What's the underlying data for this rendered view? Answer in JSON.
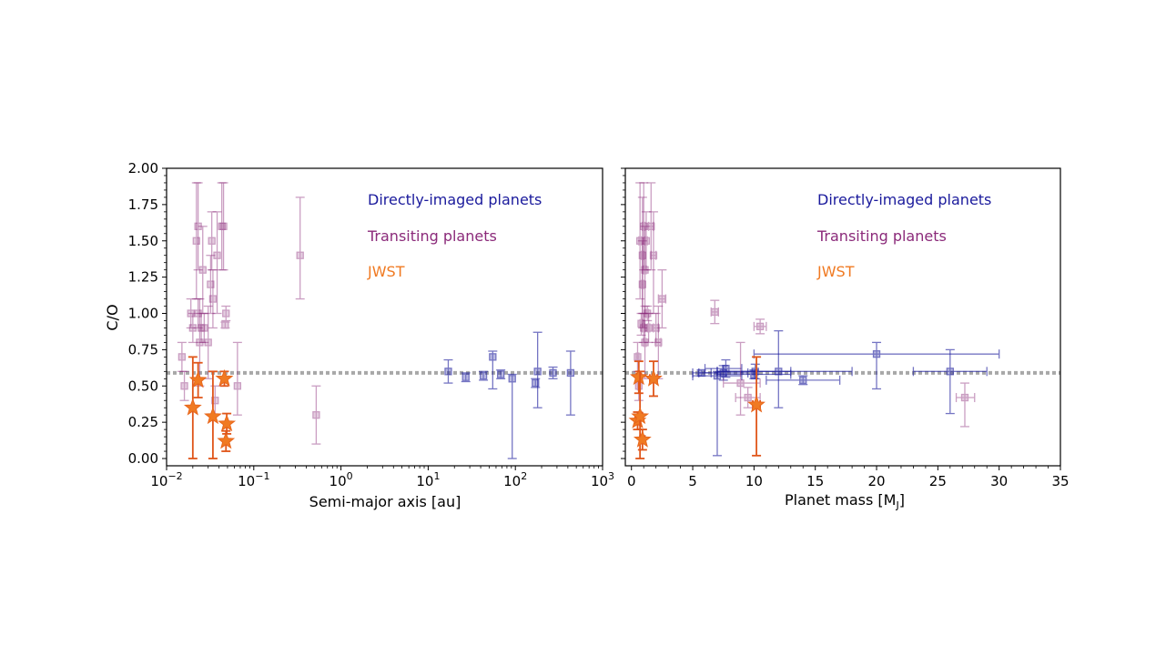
{
  "colors": {
    "direct": "#1a1a9c",
    "transit": "#8b2a7a",
    "jwst": "#f07a22",
    "jwst_err": "#e0561a",
    "ref_line": "#a8a8a8"
  },
  "chart_data": [
    {
      "type": "scatter",
      "id": "left",
      "xscale": "log",
      "xlim": [
        0.01,
        1000
      ],
      "ylim": [
        -0.05,
        2.0
      ],
      "xlabel": "Semi-major axis [au]",
      "ylabel": "C/O",
      "xticks": [
        0.01,
        0.1,
        1,
        10,
        100,
        1000
      ],
      "xtick_labels": [
        {
          "base": "10",
          "exp": "−2"
        },
        {
          "base": "10",
          "exp": "−1"
        },
        {
          "base": "10",
          "exp": "0"
        },
        {
          "base": "10",
          "exp": "1"
        },
        {
          "base": "10",
          "exp": "2"
        },
        {
          "base": "10",
          "exp": "3"
        }
      ],
      "yticks": [
        0.0,
        0.25,
        0.5,
        0.75,
        1.0,
        1.25,
        1.5,
        1.75,
        2.0
      ],
      "ytick_labels": [
        "0.00",
        "0.25",
        "0.50",
        "0.75",
        "1.00",
        "1.25",
        "1.50",
        "1.75",
        "2.00"
      ],
      "reference_line": 0.59,
      "legend": [
        {
          "label": "Directly-imaged planets",
          "series": "direct"
        },
        {
          "label": "Transiting planets",
          "series": "transit"
        },
        {
          "label": "JWST",
          "series": "jwst"
        }
      ],
      "series": [
        {
          "name": "Directly-imaged planets",
          "key": "direct",
          "marker": "square",
          "points": [
            {
              "x": 17,
              "y": 0.6,
              "ylo": 0.52,
              "yhi": 0.68
            },
            {
              "x": 27,
              "y": 0.56,
              "ylo": 0.53,
              "yhi": 0.59
            },
            {
              "x": 43,
              "y": 0.57,
              "ylo": 0.54,
              "yhi": 0.6
            },
            {
              "x": 55,
              "y": 0.7,
              "ylo": 0.48,
              "yhi": 0.74
            },
            {
              "x": 68,
              "y": 0.58,
              "ylo": 0.55,
              "yhi": 0.61
            },
            {
              "x": 92,
              "y": 0.55,
              "ylo": 0.0,
              "yhi": 0.58
            },
            {
              "x": 170,
              "y": 0.52,
              "ylo": 0.49,
              "yhi": 0.55
            },
            {
              "x": 180,
              "y": 0.6,
              "ylo": 0.35,
              "yhi": 0.87
            },
            {
              "x": 270,
              "y": 0.59,
              "ylo": 0.55,
              "yhi": 0.63
            },
            {
              "x": 430,
              "y": 0.59,
              "ylo": 0.3,
              "yhi": 0.74
            }
          ]
        },
        {
          "name": "Transiting planets",
          "key": "transit",
          "marker": "square",
          "points": [
            {
              "x": 0.015,
              "y": 0.7,
              "ylo": 0.6,
              "yhi": 0.8
            },
            {
              "x": 0.016,
              "y": 0.5,
              "ylo": 0.4,
              "yhi": 0.6
            },
            {
              "x": 0.019,
              "y": 1.0,
              "ylo": 0.9,
              "yhi": 1.1
            },
            {
              "x": 0.02,
              "y": 0.9,
              "ylo": 0.8,
              "yhi": 1.0
            },
            {
              "x": 0.022,
              "y": 1.5,
              "ylo": 1.1,
              "yhi": 1.9
            },
            {
              "x": 0.023,
              "y": 1.6,
              "ylo": 1.3,
              "yhi": 1.9
            },
            {
              "x": 0.023,
              "y": 1.0,
              "ylo": 0.9,
              "yhi": 1.1
            },
            {
              "x": 0.024,
              "y": 0.8,
              "ylo": 0.5,
              "yhi": 1.1
            },
            {
              "x": 0.025,
              "y": 0.9,
              "ylo": 0.8,
              "yhi": 1.0
            },
            {
              "x": 0.026,
              "y": 1.3,
              "ylo": 1.0,
              "yhi": 1.6
            },
            {
              "x": 0.027,
              "y": 0.9,
              "ylo": 0.8,
              "yhi": 1.0
            },
            {
              "x": 0.03,
              "y": 0.8,
              "ylo": 0.55,
              "yhi": 1.05
            },
            {
              "x": 0.032,
              "y": 1.2,
              "ylo": 1.0,
              "yhi": 1.4
            },
            {
              "x": 0.033,
              "y": 1.5,
              "ylo": 1.3,
              "yhi": 1.7
            },
            {
              "x": 0.034,
              "y": 1.1,
              "ylo": 0.9,
              "yhi": 1.3
            },
            {
              "x": 0.036,
              "y": 0.4,
              "ylo": 0.3,
              "yhi": 0.5
            },
            {
              "x": 0.038,
              "y": 1.4,
              "ylo": 1.0,
              "yhi": 1.7
            },
            {
              "x": 0.043,
              "y": 1.6,
              "ylo": 1.3,
              "yhi": 1.9
            },
            {
              "x": 0.045,
              "y": 1.6,
              "ylo": 1.3,
              "yhi": 1.9
            },
            {
              "x": 0.047,
              "y": 0.92,
              "ylo": 0.9,
              "yhi": 0.94
            },
            {
              "x": 0.048,
              "y": 1.0,
              "ylo": 0.95,
              "yhi": 1.05
            },
            {
              "x": 0.065,
              "y": 0.5,
              "ylo": 0.3,
              "yhi": 0.8
            },
            {
              "x": 0.34,
              "y": 1.4,
              "ylo": 1.1,
              "yhi": 1.8
            },
            {
              "x": 0.52,
              "y": 0.3,
              "ylo": 0.1,
              "yhi": 0.5
            }
          ]
        },
        {
          "name": "JWST",
          "key": "jwst",
          "marker": "star",
          "points": [
            {
              "x": 0.02,
              "y": 0.35,
              "ylo": 0.0,
              "yhi": 0.7
            },
            {
              "x": 0.023,
              "y": 0.54,
              "ylo": 0.42,
              "yhi": 0.66
            },
            {
              "x": 0.034,
              "y": 0.29,
              "ylo": 0.0,
              "yhi": 0.6
            },
            {
              "x": 0.046,
              "y": 0.55,
              "ylo": 0.5,
              "yhi": 0.6
            },
            {
              "x": 0.048,
              "y": 0.12,
              "ylo": 0.05,
              "yhi": 0.19
            },
            {
              "x": 0.049,
              "y": 0.24,
              "ylo": 0.17,
              "yhi": 0.31
            }
          ]
        }
      ]
    },
    {
      "type": "scatter",
      "id": "right",
      "xscale": "linear",
      "xlim": [
        -0.5,
        35
      ],
      "ylim": [
        -0.05,
        2.0
      ],
      "xlabel_main": "Planet mass [M",
      "xlabel_sub": "J",
      "xlabel_end": "]",
      "xticks": [
        0,
        5,
        10,
        15,
        20,
        25,
        30,
        35
      ],
      "xtick_labels": [
        "0",
        "5",
        "10",
        "15",
        "20",
        "25",
        "30",
        "35"
      ],
      "yticks": [
        0.0,
        0.25,
        0.5,
        0.75,
        1.0,
        1.25,
        1.5,
        1.75,
        2.0
      ],
      "reference_line": 0.59,
      "legend": [
        {
          "label": "Directly-imaged planets",
          "series": "direct"
        },
        {
          "label": "Transiting planets",
          "series": "transit"
        },
        {
          "label": "JWST",
          "series": "jwst"
        }
      ],
      "series": [
        {
          "name": "Directly-imaged planets",
          "key": "direct",
          "marker": "square",
          "points": [
            {
              "x": 5.7,
              "y": 0.59,
              "xlo": 5.0,
              "xhi": 6.5,
              "ylo": 0.57,
              "yhi": 0.61
            },
            {
              "x": 7.0,
              "y": 0.57,
              "xlo": 5.0,
              "xhi": 9.0,
              "ylo": 0.02,
              "yhi": 0.6
            },
            {
              "x": 7.5,
              "y": 0.59,
              "xlo": 5.5,
              "xhi": 9.5,
              "ylo": 0.54,
              "yhi": 0.64
            },
            {
              "x": 7.7,
              "y": 0.62,
              "xlo": 6.0,
              "xhi": 9.0,
              "ylo": 0.56,
              "yhi": 0.68
            },
            {
              "x": 10.0,
              "y": 0.58,
              "xlo": 7.0,
              "xhi": 13.0,
              "ylo": 0.55,
              "yhi": 0.61
            },
            {
              "x": 10.1,
              "y": 0.6,
              "xlo": 7.0,
              "xhi": 13.0,
              "ylo": 0.55,
              "yhi": 0.65
            },
            {
              "x": 12.0,
              "y": 0.6,
              "xlo": 7.0,
              "xhi": 18.0,
              "ylo": 0.35,
              "yhi": 0.88
            },
            {
              "x": 14.0,
              "y": 0.54,
              "xlo": 11.0,
              "xhi": 17.0,
              "ylo": 0.51,
              "yhi": 0.57
            },
            {
              "x": 20.0,
              "y": 0.72,
              "xlo": 10.0,
              "xhi": 30.0,
              "ylo": 0.48,
              "yhi": 0.8
            },
            {
              "x": 26.0,
              "y": 0.6,
              "xlo": 23.0,
              "xhi": 29.0,
              "ylo": 0.31,
              "yhi": 0.75
            }
          ]
        },
        {
          "name": "Transiting planets",
          "key": "transit",
          "marker": "square",
          "points": [
            {
              "x": 0.5,
              "y": 0.7,
              "xlo": 0.4,
              "xhi": 0.6,
              "ylo": 0.6,
              "yhi": 0.8
            },
            {
              "x": 0.6,
              "y": 0.5,
              "xlo": 0.5,
              "xhi": 0.7,
              "ylo": 0.4,
              "yhi": 0.6
            },
            {
              "x": 0.7,
              "y": 1.5,
              "xlo": 0.6,
              "xhi": 0.8,
              "ylo": 1.1,
              "yhi": 1.9
            },
            {
              "x": 0.8,
              "y": 0.93,
              "xlo": 0.7,
              "xhi": 0.9,
              "ylo": 0.85,
              "yhi": 1.0
            },
            {
              "x": 0.9,
              "y": 1.4,
              "xlo": 0.8,
              "xhi": 1.0,
              "ylo": 1.0,
              "yhi": 1.8
            },
            {
              "x": 0.9,
              "y": 1.2,
              "xlo": 0.8,
              "xhi": 1.0,
              "ylo": 0.9,
              "yhi": 1.5
            },
            {
              "x": 1.0,
              "y": 1.6,
              "xlo": 0.9,
              "xhi": 1.1,
              "ylo": 1.3,
              "yhi": 1.9
            },
            {
              "x": 1.0,
              "y": 0.9,
              "xlo": 0.9,
              "xhi": 1.1,
              "ylo": 0.8,
              "yhi": 1.0
            },
            {
              "x": 1.1,
              "y": 1.3,
              "xlo": 1.0,
              "xhi": 1.2,
              "ylo": 1.0,
              "yhi": 1.6
            },
            {
              "x": 1.1,
              "y": 0.8,
              "xlo": 1.0,
              "xhi": 1.2,
              "ylo": 0.55,
              "yhi": 1.05
            },
            {
              "x": 1.2,
              "y": 1.5,
              "xlo": 1.1,
              "xhi": 1.3,
              "ylo": 1.3,
              "yhi": 1.7
            },
            {
              "x": 1.3,
              "y": 1.0,
              "xlo": 1.2,
              "xhi": 1.4,
              "ylo": 0.95,
              "yhi": 1.05
            },
            {
              "x": 1.4,
              "y": 0.9,
              "xlo": 1.3,
              "xhi": 1.5,
              "ylo": 0.8,
              "yhi": 1.0
            },
            {
              "x": 1.6,
              "y": 1.6,
              "xlo": 1.4,
              "xhi": 1.8,
              "ylo": 1.3,
              "yhi": 1.9
            },
            {
              "x": 1.8,
              "y": 1.4,
              "xlo": 1.6,
              "xhi": 2.0,
              "ylo": 1.0,
              "yhi": 1.7
            },
            {
              "x": 2.0,
              "y": 0.9,
              "xlo": 1.8,
              "xhi": 2.2,
              "ylo": 0.8,
              "yhi": 1.0
            },
            {
              "x": 2.2,
              "y": 0.8,
              "xlo": 2.0,
              "xhi": 2.4,
              "ylo": 0.55,
              "yhi": 1.05
            },
            {
              "x": 2.5,
              "y": 1.1,
              "xlo": 2.2,
              "xhi": 2.8,
              "ylo": 0.9,
              "yhi": 1.3
            },
            {
              "x": 6.8,
              "y": 1.01,
              "xlo": 6.5,
              "xhi": 7.1,
              "ylo": 0.93,
              "yhi": 1.09
            },
            {
              "x": 8.9,
              "y": 0.52,
              "xlo": 7.5,
              "xhi": 10.5,
              "ylo": 0.3,
              "yhi": 0.8
            },
            {
              "x": 9.5,
              "y": 0.42,
              "xlo": 8.5,
              "xhi": 10.5,
              "ylo": 0.35,
              "yhi": 0.49
            },
            {
              "x": 10.5,
              "y": 0.91,
              "xlo": 10.0,
              "xhi": 11.0,
              "ylo": 0.86,
              "yhi": 0.96
            },
            {
              "x": 27.2,
              "y": 0.42,
              "xlo": 26.5,
              "xhi": 28.0,
              "ylo": 0.22,
              "yhi": 0.52
            }
          ]
        },
        {
          "name": "JWST",
          "key": "jwst",
          "marker": "star",
          "points": [
            {
              "x": 0.5,
              "y": 0.26,
              "xlo": 0.3,
              "xhi": 0.7,
              "ylo": 0.2,
              "yhi": 0.32
            },
            {
              "x": 0.6,
              "y": 0.56,
              "xlo": 0.4,
              "xhi": 0.8,
              "ylo": 0.45,
              "yhi": 0.67
            },
            {
              "x": 0.7,
              "y": 0.29,
              "xlo": 0.5,
              "xhi": 0.9,
              "ylo": 0.0,
              "yhi": 0.6
            },
            {
              "x": 0.9,
              "y": 0.13,
              "xlo": 0.7,
              "xhi": 1.1,
              "ylo": 0.06,
              "yhi": 0.2
            },
            {
              "x": 1.8,
              "y": 0.55,
              "xlo": 1.5,
              "xhi": 2.1,
              "ylo": 0.43,
              "yhi": 0.67
            },
            {
              "x": 10.2,
              "y": 0.37,
              "xlo": 9.9,
              "xhi": 10.5,
              "ylo": 0.02,
              "yhi": 0.7
            }
          ]
        }
      ]
    }
  ]
}
